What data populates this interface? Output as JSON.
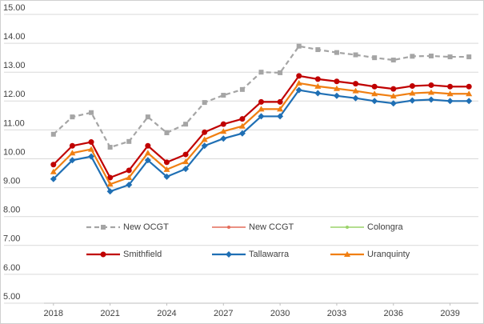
{
  "chart_data": {
    "type": "line",
    "x": [
      2018,
      2019,
      2020,
      2021,
      2022,
      2023,
      2024,
      2025,
      2026,
      2027,
      2028,
      2029,
      2030,
      2031,
      2032,
      2033,
      2034,
      2035,
      2036,
      2037,
      2038,
      2039,
      2040
    ],
    "xlim": [
      2017.5,
      2040.5
    ],
    "xticks": [
      2018,
      2021,
      2024,
      2027,
      2030,
      2033,
      2036,
      2039
    ],
    "ylim": [
      5,
      15
    ],
    "yticks": [
      {
        "value": 5,
        "label": "5.00"
      },
      {
        "value": 6,
        "label": "6.00"
      },
      {
        "value": 7,
        "label": "7.00"
      },
      {
        "value": 8,
        "label": "8.00"
      },
      {
        "value": 9,
        "label": "9.00"
      },
      {
        "value": 10,
        "label": "10.00"
      },
      {
        "value": 11,
        "label": "11.00"
      },
      {
        "value": 12,
        "label": "12.00"
      },
      {
        "value": 13,
        "label": "13.00"
      },
      {
        "value": 14,
        "label": "14.00"
      },
      {
        "value": 15,
        "label": "15.00"
      }
    ],
    "grid": true,
    "series": [
      {
        "name": "New OCGT",
        "color": "#a5a5a5",
        "marker": "square",
        "dash": true,
        "values": [
          10.85,
          11.45,
          11.6,
          10.4,
          10.6,
          11.45,
          10.9,
          11.2,
          11.95,
          12.2,
          12.4,
          13.0,
          12.98,
          13.9,
          13.78,
          13.68,
          13.6,
          13.5,
          13.42,
          13.55,
          13.56,
          13.53,
          13.53
        ]
      },
      {
        "name": "New CCGT",
        "color": "#e46c5a",
        "marker": "dot",
        "values": [
          9.8,
          10.45,
          10.58,
          9.35,
          9.6,
          10.45,
          9.88,
          10.15,
          10.92,
          11.2,
          11.38,
          11.97,
          11.97,
          12.87,
          12.76,
          12.68,
          12.6,
          12.5,
          12.42,
          12.52,
          12.55,
          12.5,
          12.5
        ]
      },
      {
        "name": "Colongra",
        "color": "#9bd36a",
        "marker": "dot",
        "values": [
          9.55,
          10.2,
          10.33,
          9.12,
          9.35,
          10.2,
          9.63,
          9.9,
          10.67,
          10.95,
          11.13,
          11.72,
          11.72,
          12.62,
          12.51,
          12.43,
          12.35,
          12.25,
          12.17,
          12.27,
          12.3,
          12.25,
          12.25
        ]
      },
      {
        "name": "Smithfield",
        "color": "#c00000",
        "marker": "circle",
        "values": [
          9.8,
          10.45,
          10.58,
          9.35,
          9.6,
          10.45,
          9.88,
          10.15,
          10.92,
          11.2,
          11.38,
          11.97,
          11.97,
          12.87,
          12.76,
          12.68,
          12.6,
          12.5,
          12.42,
          12.52,
          12.55,
          12.5,
          12.5
        ]
      },
      {
        "name": "Tallawarra",
        "color": "#1f6fb4",
        "marker": "diamond",
        "values": [
          9.3,
          9.95,
          10.08,
          8.87,
          9.1,
          9.95,
          9.38,
          9.65,
          10.45,
          10.7,
          10.88,
          11.47,
          11.47,
          12.38,
          12.27,
          12.18,
          12.1,
          12.0,
          11.92,
          12.02,
          12.05,
          12.0,
          12.0
        ]
      },
      {
        "name": "Uranquinty",
        "color": "#f07f12",
        "marker": "triangle",
        "values": [
          9.55,
          10.2,
          10.33,
          9.12,
          9.35,
          10.2,
          9.63,
          9.9,
          10.67,
          10.95,
          11.13,
          11.72,
          11.72,
          12.62,
          12.51,
          12.43,
          12.35,
          12.25,
          12.17,
          12.27,
          12.3,
          12.25,
          12.25
        ]
      }
    ]
  }
}
